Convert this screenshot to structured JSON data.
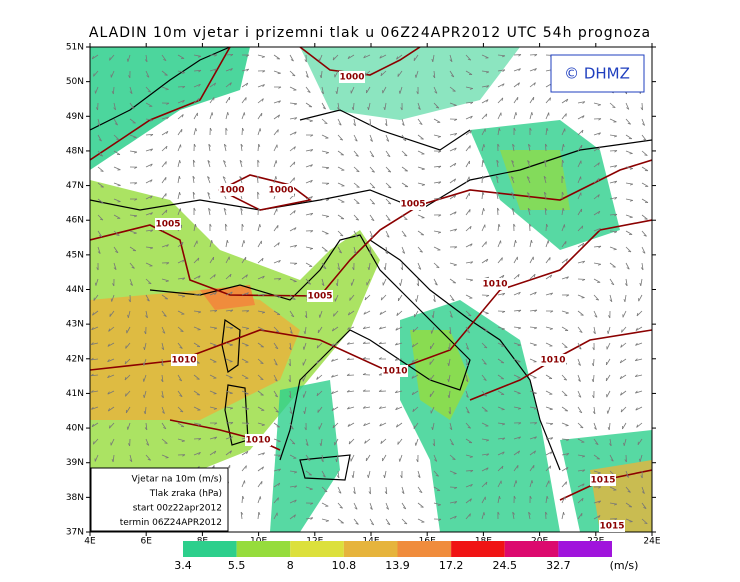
{
  "header": {
    "title": "ALADIN 10m vjetar i prizemni tlak u 06Z24APR2012 UTC 54h prognoza",
    "logo": "© DHMZ"
  },
  "axes": {
    "lat_labels": [
      "51N",
      "50N",
      "49N",
      "48N",
      "47N",
      "46N",
      "45N",
      "44N",
      "43N",
      "42N",
      "41N",
      "40N",
      "39N",
      "38N",
      "37N"
    ],
    "lon_labels": [
      "4E",
      "6E",
      "8E",
      "10E",
      "12E",
      "14E",
      "16E",
      "18E",
      "20E",
      "22E",
      "24E"
    ]
  },
  "isobar_labels": [
    "1000",
    "1000",
    "1000",
    "1005",
    "1005",
    "1005",
    "1010",
    "1010",
    "1010",
    "1010",
    "1010",
    "1015",
    "1015"
  ],
  "info_box": [
    "Vjetar na 10m (m/s)",
    "Tlak zraka (hPa)",
    "start 00z22apr2012",
    "termin 06Z24APR2012"
  ],
  "legend": {
    "labels": [
      "3.4",
      "5.5",
      "8",
      "10.8",
      "13.9",
      "17.2",
      "24.5",
      "32.7"
    ],
    "colors": [
      "#2dcf8c",
      "#96dc3c",
      "#dce03c",
      "#e6b43c",
      "#f08c3c",
      "#f01414",
      "#dc0a6e",
      "#a014dc"
    ],
    "unit": "(m/s)"
  }
}
